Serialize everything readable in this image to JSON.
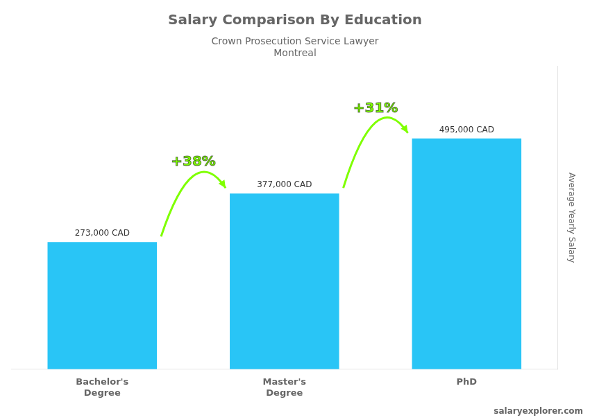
{
  "chart_data": {
    "type": "bar",
    "title": "Salary Comparison By Education",
    "subtitle": [
      "Crown Prosecution Service Lawyer",
      "Montreal"
    ],
    "ylabel": "Average Yearly Salary",
    "categories": [
      "Bachelor's\nDegree",
      "Master's\nDegree",
      "PhD"
    ],
    "values": [
      273000,
      377000,
      495000
    ],
    "value_labels": [
      "273,000 CAD",
      "377,000 CAD",
      "495,000 CAD"
    ],
    "data_labels": true,
    "color": "#29c5f6",
    "ylim": [
      0,
      650000
    ],
    "grid": false,
    "tick_labels": "x",
    "annotations": [
      {
        "text": "+38%",
        "between": [
          0,
          1
        ],
        "color": "#7fff00"
      },
      {
        "text": "+31%",
        "between": [
          1,
          2
        ],
        "color": "#7fff00"
      },
      {
        "text": "salaryexplorer.com"
      }
    ]
  }
}
